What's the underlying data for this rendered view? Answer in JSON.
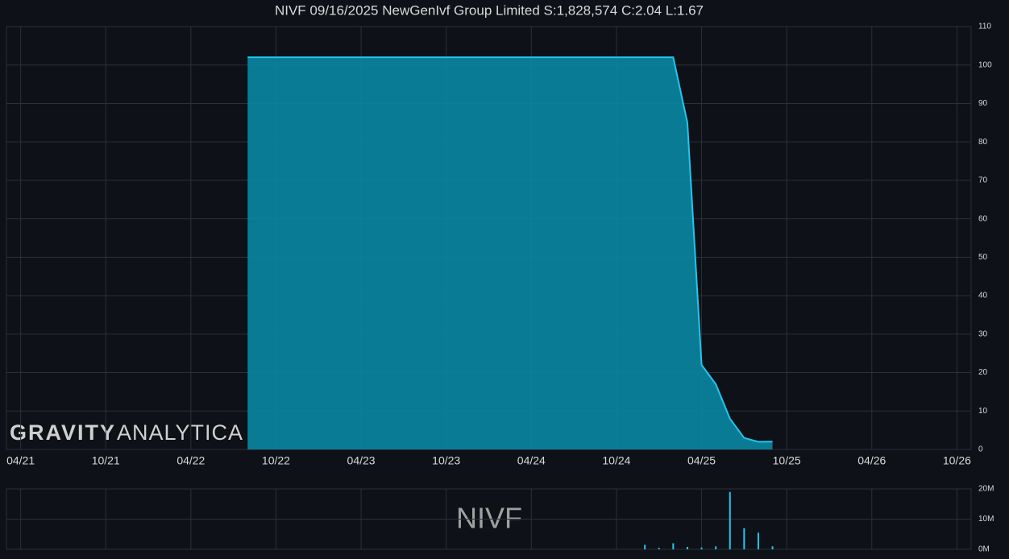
{
  "chart_data": [
    {
      "type": "area",
      "title": "NIVF 09/16/2025 NewGenIvf Group Limited S:1,828,574 C:2.04 L:1.67",
      "watermark_bold": "GRAVITY",
      "watermark_light": "ANALYTICA",
      "x": [
        "2022-08",
        "2022-09",
        "2022-10",
        "2022-12",
        "2023-03",
        "2023-06",
        "2023-09",
        "2023-12",
        "2024-03",
        "2024-06",
        "2024-09",
        "2024-12",
        "2025-02",
        "2025-03",
        "2025-04",
        "2025-05",
        "2025-06",
        "2025-07",
        "2025-08",
        "2025-09"
      ],
      "values": [
        102,
        102,
        102,
        102,
        102,
        102,
        102,
        102,
        102,
        102,
        102,
        102,
        102,
        85,
        22,
        17,
        8,
        3,
        2,
        2.04
      ],
      "color": "#1ec8f0",
      "fill": "#0a87a3",
      "xlim": [
        "2021-03",
        "2026-11"
      ],
      "xticks": [
        {
          "value": "2021-04",
          "label": "04/21"
        },
        {
          "value": "2021-10",
          "label": "10/21"
        },
        {
          "value": "2022-04",
          "label": "04/22"
        },
        {
          "value": "2022-10",
          "label": "10/22"
        },
        {
          "value": "2023-04",
          "label": "04/23"
        },
        {
          "value": "2023-10",
          "label": "10/23"
        },
        {
          "value": "2024-04",
          "label": "04/24"
        },
        {
          "value": "2024-10",
          "label": "10/24"
        },
        {
          "value": "2025-04",
          "label": "04/25"
        },
        {
          "value": "2025-10",
          "label": "10/25"
        },
        {
          "value": "2026-04",
          "label": "04/26"
        },
        {
          "value": "2026-10",
          "label": "10/26"
        }
      ],
      "ylim": [
        0,
        110
      ],
      "yticks": [
        0,
        10,
        20,
        30,
        40,
        50,
        60,
        70,
        80,
        90,
        100,
        110
      ],
      "grid": true
    },
    {
      "type": "bar",
      "watermark": "NIVF",
      "x": [
        "2024-12",
        "2025-01",
        "2025-02",
        "2025-03",
        "2025-04",
        "2025-05",
        "2025-06",
        "2025-07",
        "2025-08",
        "2025-09"
      ],
      "values": [
        1500000,
        500000,
        2000000,
        800000,
        600000,
        1000000,
        19000000,
        7000000,
        5500000,
        1000000
      ],
      "color": "#1ec8f0",
      "xlim": [
        "2021-03",
        "2026-11"
      ],
      "xticks": [
        "2021-04",
        "2021-10",
        "2022-04",
        "2022-10",
        "2023-04",
        "2023-10",
        "2024-04",
        "2024-10",
        "2025-04",
        "2025-10",
        "2026-04",
        "2026-10"
      ],
      "ylim": [
        0,
        20000000
      ],
      "yticks": [
        {
          "value": 0,
          "label": "0M"
        },
        {
          "value": 10000000,
          "label": "10M"
        },
        {
          "value": 20000000,
          "label": "20M"
        }
      ],
      "grid": true
    }
  ]
}
